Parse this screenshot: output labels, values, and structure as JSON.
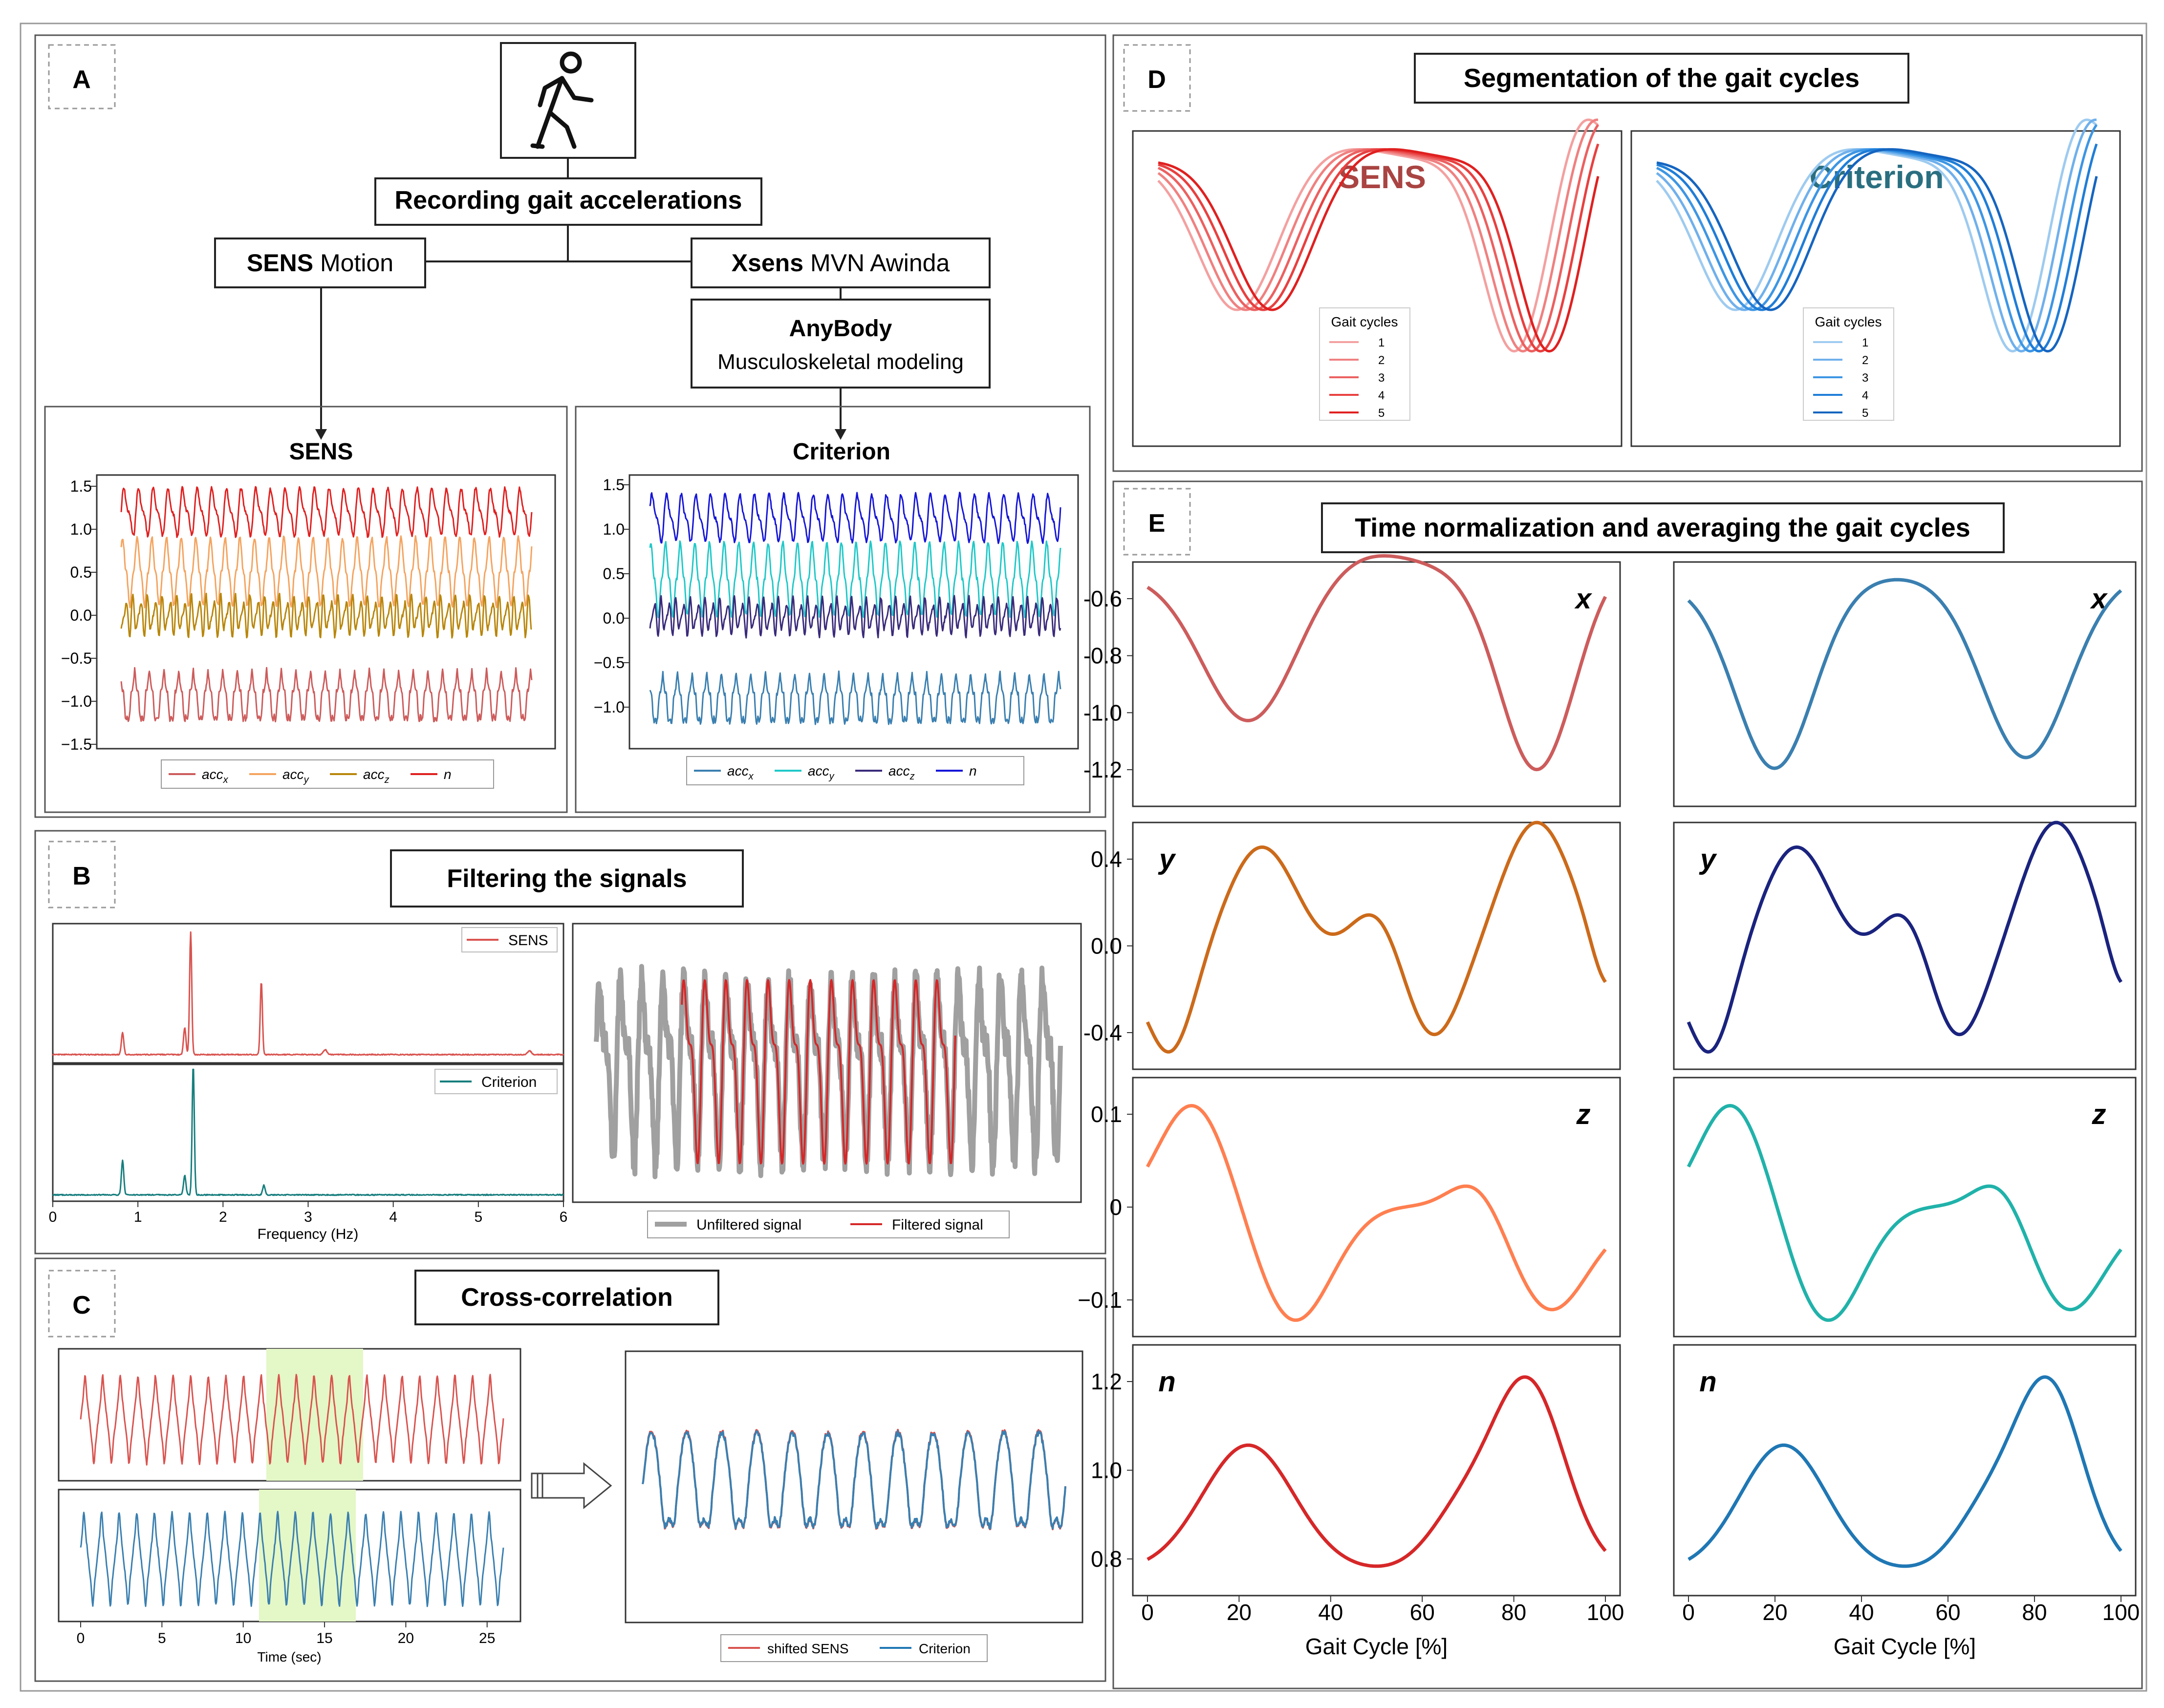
{
  "panels": {
    "a": {
      "letter": "A",
      "top_box": "Recording gait accelerations",
      "sens_box_bold": "SENS",
      "sens_box_rest": " Motion",
      "xsens_box_bold": "Xsens",
      "xsens_box_rest": " MVN Awinda",
      "anybody_title": "AnyBody",
      "anybody_sub": "Musculoskeletal modeling",
      "plot_left_title": "SENS",
      "plot_right_title": "Criterion",
      "left_yticks": [
        "1.5",
        "1.0",
        "0.5",
        "0.0",
        "−0.5",
        "−1.0",
        "−1.5"
      ],
      "right_yticks": [
        "1.5",
        "1.0",
        "0.5",
        "0.0",
        "−0.5",
        "−1.0"
      ],
      "legend": [
        "acc",
        "acc",
        "acc",
        "n"
      ],
      "legend_subs": [
        "x",
        "y",
        "z",
        ""
      ]
    },
    "b": {
      "letter": "B",
      "title": "Filtering the signals",
      "legend_top": "SENS",
      "legend_bottom": "Criterion",
      "xticks": [
        "0",
        "1",
        "2",
        "3",
        "4",
        "5",
        "6"
      ],
      "xlabel": "Frequency (Hz)",
      "legend_right": [
        "Unfiltered signal",
        "Filtered signal"
      ]
    },
    "c": {
      "letter": "C",
      "title": "Cross-correlation",
      "xticks": [
        "0",
        "5",
        "10",
        "15",
        "20",
        "25"
      ],
      "xlabel": "Time (sec)",
      "legend": [
        "shifted SENS",
        "Criterion"
      ]
    },
    "d": {
      "letter": "D",
      "title": "Segmentation of the gait cycles",
      "left_label": "SENS",
      "right_label": "Criterion",
      "legend_title": "Gait cycles",
      "cycles": [
        "1",
        "2",
        "3",
        "4",
        "5"
      ]
    },
    "e": {
      "letter": "E",
      "title": "Time normalization and averaging the gait cycles",
      "row_labels": [
        "x",
        "y",
        "z",
        "n"
      ],
      "yticks_x": [
        "-0.6",
        "-0.8",
        "-1.0",
        "-1.2"
      ],
      "yticks_y": [
        "0.4",
        "0.0",
        "-0.4"
      ],
      "yticks_z": [
        "0.1",
        "0",
        "−0.1"
      ],
      "yticks_n": [
        "1.2",
        "1.0",
        "0.8"
      ],
      "xticks": [
        "0",
        "20",
        "40",
        "60",
        "80",
        "100"
      ],
      "xlabel": "Gait Cycle [%]"
    }
  },
  "colors": {
    "sens_red": "#d9534f",
    "crit_blue": "#1f77b4",
    "grey": "#a0a0a0"
  }
}
